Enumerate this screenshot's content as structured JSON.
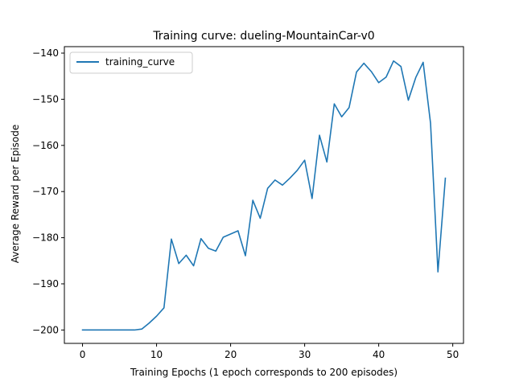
{
  "chart_data": {
    "type": "line",
    "title": "Training curve: dueling-MountainCar-v0",
    "xlabel": "Training Epochs (1 epoch corresponds to 200 episodes)",
    "ylabel": "Average Reward per Episode",
    "xlim": [
      -2.45,
      51.45
    ],
    "ylim": [
      -202.9,
      -138.6
    ],
    "xticks": [
      0,
      10,
      20,
      30,
      40,
      50
    ],
    "yticks": [
      -200,
      -190,
      -180,
      -170,
      -160,
      -150,
      -140
    ],
    "grid": false,
    "legend_position": "top-left",
    "series": [
      {
        "name": "training_curve",
        "color": "#1f77b4",
        "x": [
          0,
          1,
          2,
          3,
          4,
          5,
          6,
          7,
          8,
          9,
          10,
          11,
          12,
          13,
          14,
          15,
          16,
          17,
          18,
          19,
          20,
          21,
          22,
          23,
          24,
          25,
          26,
          27,
          28,
          29,
          30,
          31,
          32,
          33,
          34,
          35,
          36,
          37,
          38,
          39,
          40,
          41,
          42,
          43,
          44,
          45,
          46,
          47,
          48,
          49
        ],
        "y": [
          -200,
          -200,
          -200,
          -200,
          -200,
          -200,
          -200,
          -200,
          -199.8,
          -198.5,
          -197,
          -195.2,
          -180.3,
          -185.6,
          -183.8,
          -186.1,
          -180.2,
          -182.3,
          -182.9,
          -179.9,
          -179.2,
          -178.5,
          -183.9,
          -171.9,
          -175.8,
          -169.3,
          -167.5,
          -168.6,
          -167.1,
          -165.4,
          -163.2,
          -171.5,
          -157.8,
          -163.6,
          -151,
          -153.8,
          -151.8,
          -144.1,
          -142.2,
          -144,
          -146.4,
          -145.2,
          -141.7,
          -142.9,
          -150.2,
          -145.3,
          -142,
          -155.2,
          -187.4,
          -167.1
        ]
      }
    ]
  }
}
